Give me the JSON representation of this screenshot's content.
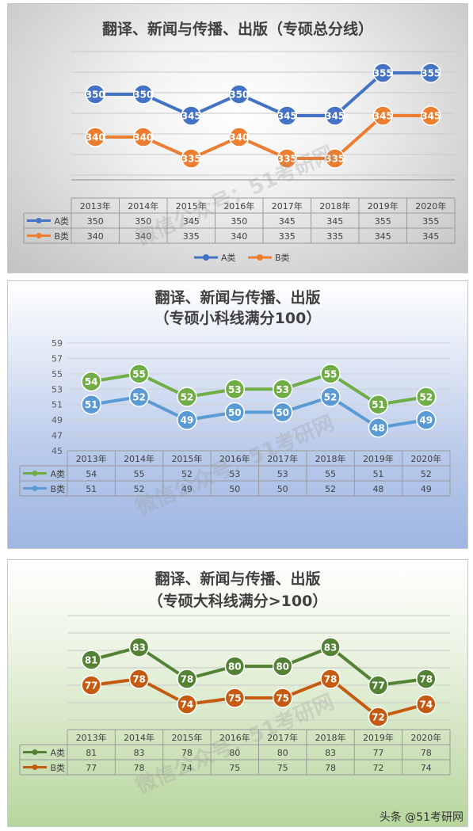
{
  "chart_data": [
    {
      "type": "line",
      "title_lines": [
        "翻译、新闻与传播、出版（专硕总分线）"
      ],
      "categories": [
        "2013年",
        "2014年",
        "2015年",
        "2016年",
        "2017年",
        "2018年",
        "2019年",
        "2020年"
      ],
      "series": [
        {
          "name": "A类",
          "values": [
            350,
            350,
            345,
            350,
            345,
            345,
            355,
            355
          ],
          "color": "#4472C4"
        },
        {
          "name": "B类",
          "values": [
            340,
            340,
            335,
            340,
            335,
            335,
            345,
            345
          ],
          "color": "#ED7D31"
        }
      ],
      "ylim": [
        330,
        360
      ],
      "yticks": [],
      "legend": "bottom",
      "grid": true,
      "data_table": true
    },
    {
      "type": "line",
      "title_lines": [
        "翻译、新闻与传播、出版",
        "（专硕小科线满分100）"
      ],
      "categories": [
        "2013年",
        "2014年",
        "2015年",
        "2016年",
        "2017年",
        "2018年",
        "2019年",
        "2020年"
      ],
      "series": [
        {
          "name": "A类",
          "values": [
            54,
            55,
            52,
            53,
            53,
            55,
            51,
            52
          ],
          "color": "#70AD47"
        },
        {
          "name": "B类",
          "values": [
            51,
            52,
            49,
            50,
            50,
            52,
            48,
            49
          ],
          "color": "#5B9BD5"
        }
      ],
      "ylim": [
        45,
        59
      ],
      "yticks": [
        "45",
        "47",
        "49",
        "51",
        "53",
        "55",
        "57",
        "59"
      ],
      "legend": "none",
      "grid": true,
      "data_table": true
    },
    {
      "type": "line",
      "title_lines": [
        "翻译、新闻与传播、出版",
        "（专硕大科线满分>100）"
      ],
      "categories": [
        "2013年",
        "2014年",
        "2015年",
        "2016年",
        "2017年",
        "2018年",
        "2019年",
        "2020年"
      ],
      "series": [
        {
          "name": "A类",
          "values": [
            81,
            83,
            78,
            80,
            80,
            83,
            77,
            78
          ],
          "color": "#548235"
        },
        {
          "name": "B类",
          "values": [
            77,
            78,
            74,
            75,
            75,
            78,
            72,
            74
          ],
          "color": "#C55A11"
        }
      ],
      "ylim": [
        70,
        88
      ],
      "yticks": [],
      "legend": "none",
      "grid": true,
      "data_table": true
    }
  ],
  "watermark": "微信公众号：51考研网",
  "footer": "头条 @51考研网"
}
